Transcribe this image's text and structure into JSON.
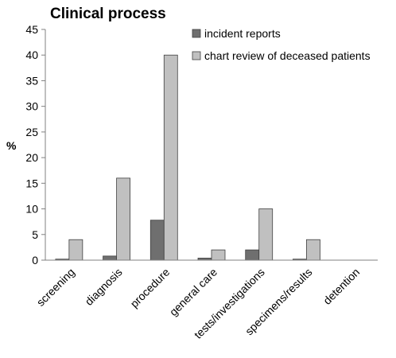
{
  "chart_data": {
    "type": "bar",
    "title": "Clinical process",
    "xlabel": "",
    "ylabel": "%",
    "ylim": [
      0,
      45
    ],
    "yticks": [
      0,
      5,
      10,
      15,
      20,
      25,
      30,
      35,
      40,
      45
    ],
    "grid": false,
    "legend_position": "top-right",
    "categories": [
      "screening",
      "diagnosis",
      "procedure",
      "general care",
      "tests/investigations",
      "specimens/results",
      "detention"
    ],
    "series": [
      {
        "name": "incident reports",
        "color": "#6f6f6f",
        "values": [
          0.2,
          0.8,
          7.8,
          0.4,
          2.0,
          0.2,
          0
        ]
      },
      {
        "name": "chart review of deceased patients",
        "color": "#c0c0c0",
        "values": [
          4,
          16,
          40,
          2,
          10,
          4,
          0
        ]
      }
    ]
  }
}
